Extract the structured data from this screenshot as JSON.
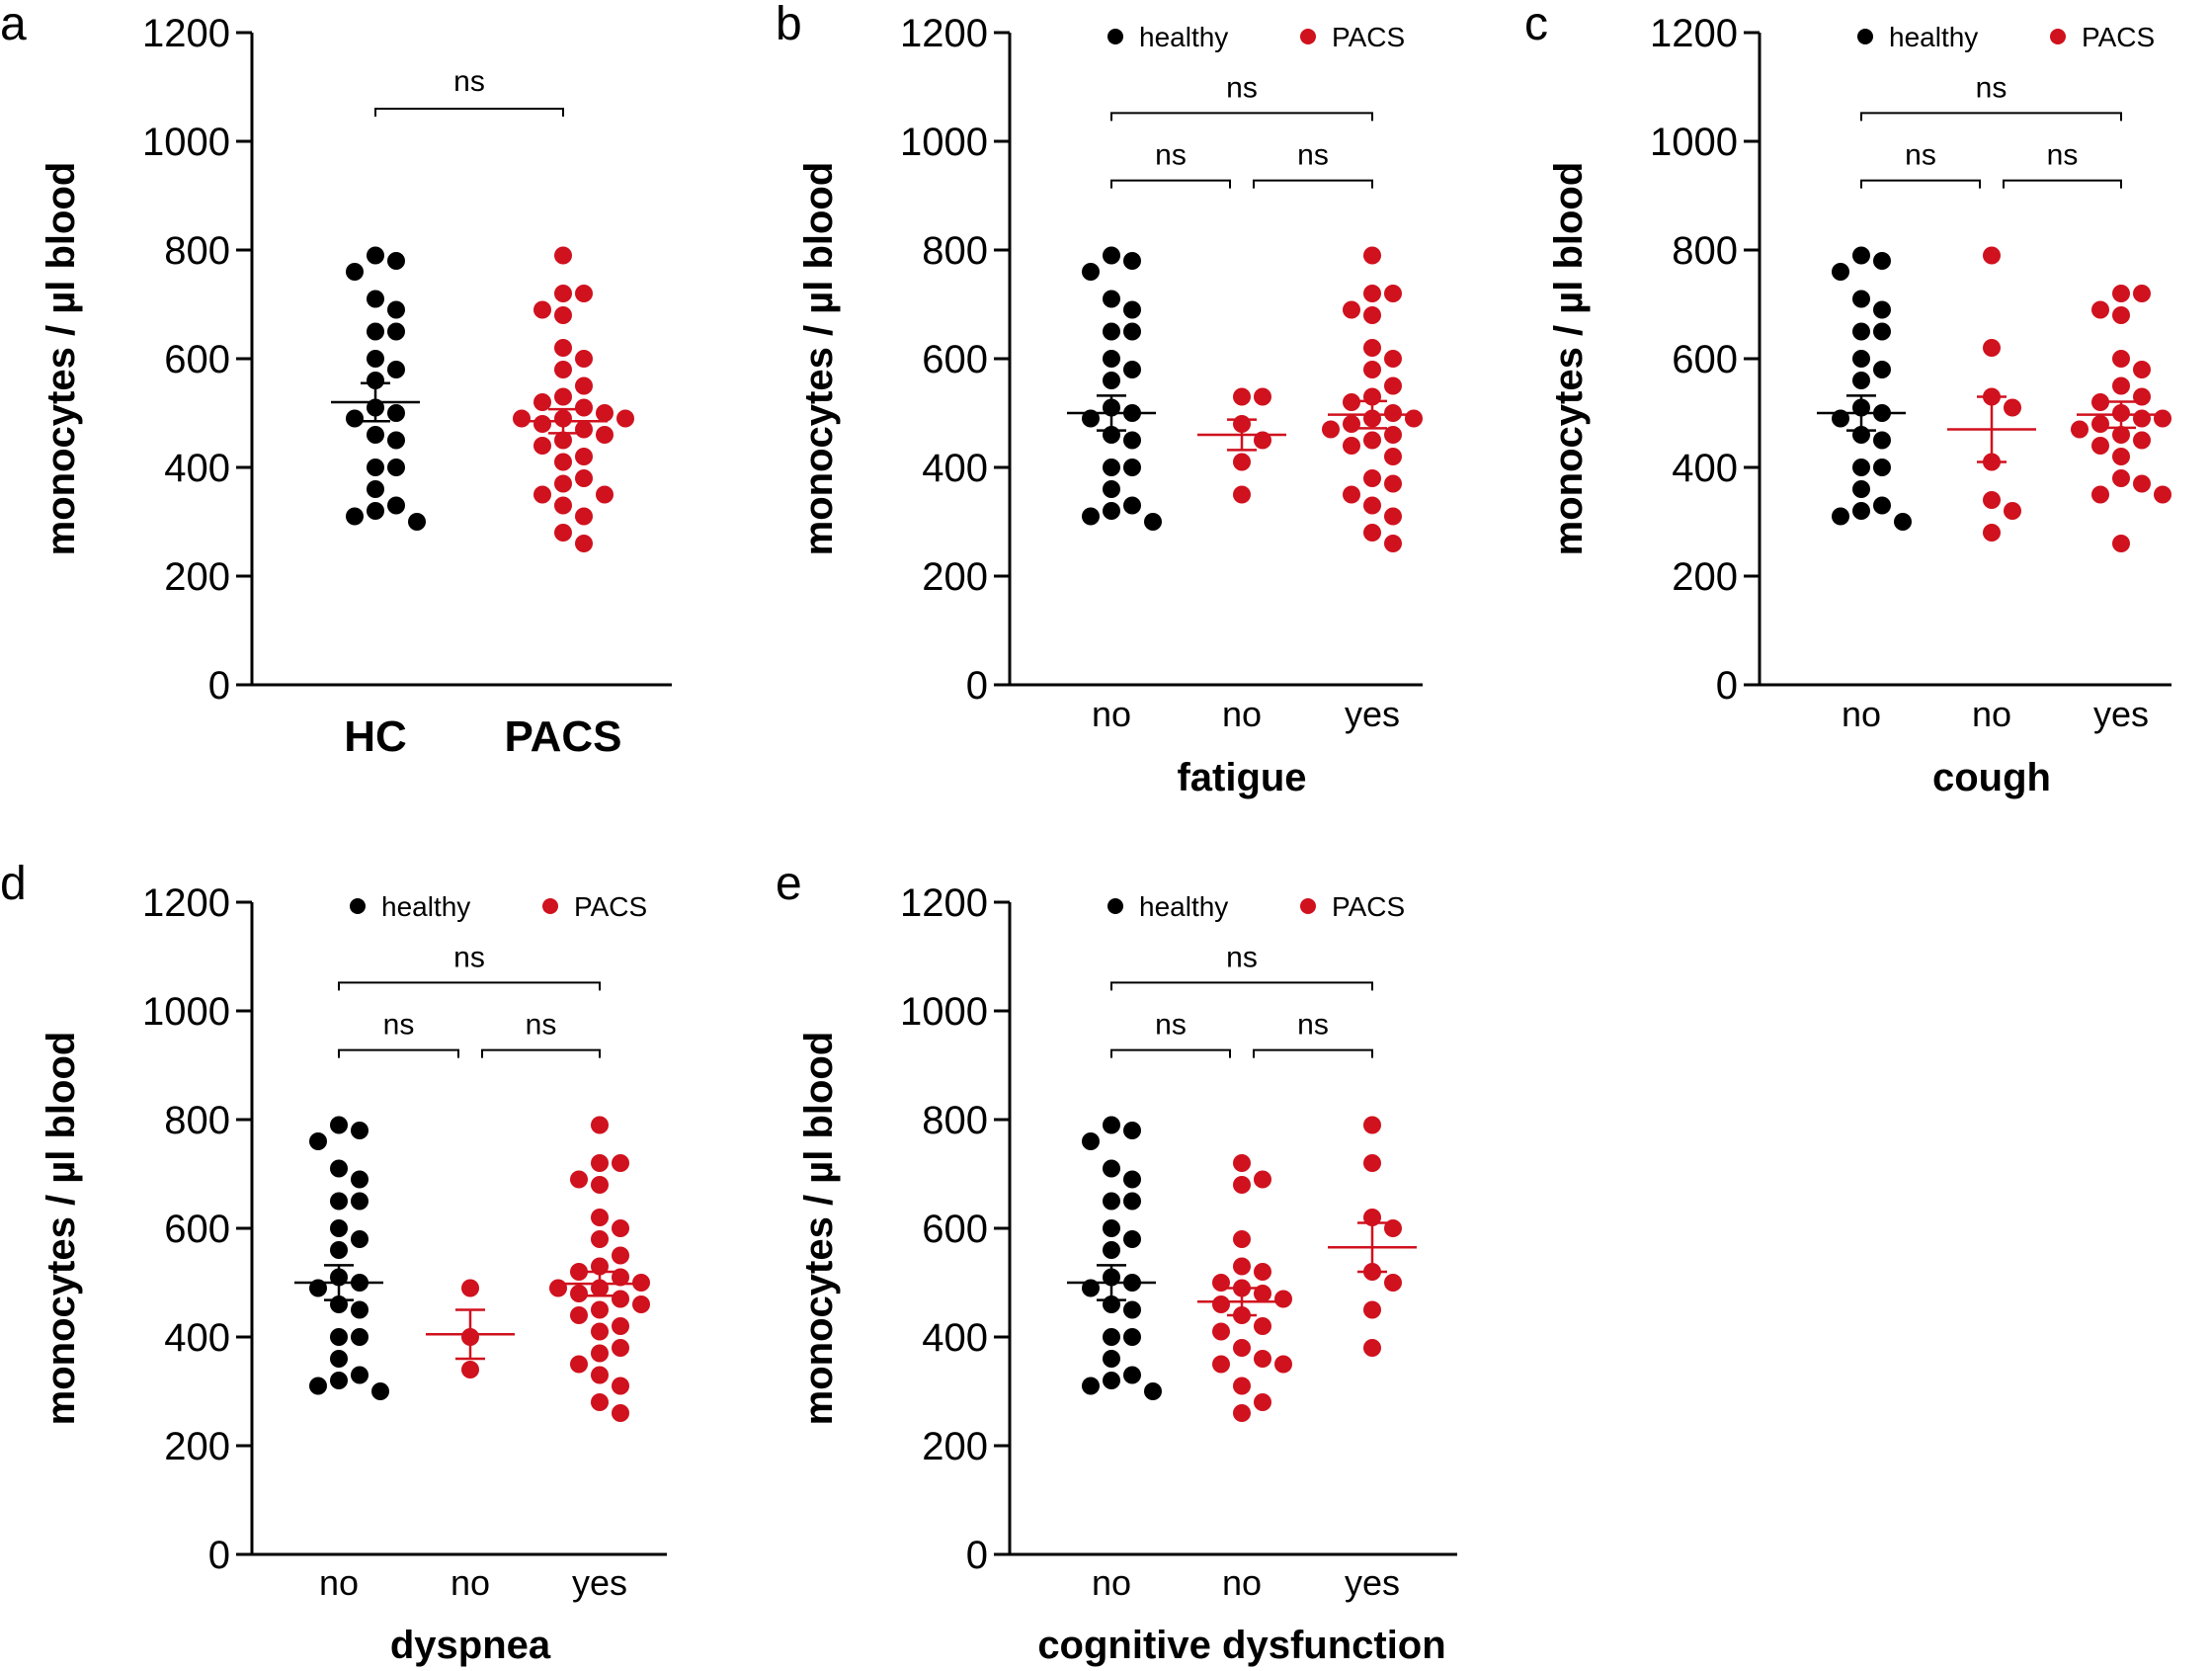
{
  "colors": {
    "healthy": "#000000",
    "pacs": "#d0111e",
    "axis": "#000000"
  },
  "chart_data": [
    {
      "panel": "a",
      "type": "scatter",
      "ylabel": "monocytes / µl blood",
      "xlabel": "",
      "ylim": [
        0,
        1200
      ],
      "yticks": [
        "0",
        "200",
        "400",
        "600",
        "800",
        "1000",
        "1200"
      ],
      "categories": [
        "HC",
        "PACS"
      ],
      "groups": [
        {
          "category": "HC",
          "series": "healthy",
          "mean": 520,
          "sem": 35,
          "values": [
            790,
            780,
            760,
            710,
            690,
            650,
            650,
            600,
            580,
            560,
            510,
            500,
            490,
            460,
            450,
            400,
            400,
            360,
            330,
            320,
            310,
            300
          ]
        },
        {
          "category": "PACS",
          "series": "PACS",
          "mean": 485,
          "sem": 22,
          "values": [
            790,
            720,
            720,
            690,
            680,
            620,
            600,
            580,
            550,
            530,
            520,
            510,
            500,
            490,
            490,
            490,
            480,
            470,
            460,
            450,
            440,
            420,
            410,
            380,
            370,
            350,
            350,
            330,
            310,
            280,
            260
          ]
        }
      ],
      "comparisons": [
        {
          "groups": [
            "HC",
            "PACS"
          ],
          "label": "ns"
        }
      ],
      "legend": null
    },
    {
      "panel": "b",
      "type": "scatter",
      "ylabel": "monocytes / µl blood",
      "xlabel": "fatigue",
      "ylim": [
        0,
        1200
      ],
      "yticks": [
        "0",
        "200",
        "400",
        "600",
        "800",
        "1000",
        "1200"
      ],
      "categories": [
        "no",
        "no",
        "yes"
      ],
      "groups": [
        {
          "category": "no",
          "series": "healthy",
          "mean": 500,
          "sem": 32,
          "values": [
            790,
            780,
            760,
            710,
            690,
            650,
            650,
            600,
            580,
            560,
            510,
            500,
            490,
            460,
            450,
            400,
            400,
            360,
            330,
            320,
            310,
            300
          ]
        },
        {
          "category": "no",
          "series": "PACS",
          "mean": 460,
          "sem": 28,
          "values": [
            530,
            530,
            480,
            450,
            410,
            350
          ]
        },
        {
          "category": "yes",
          "series": "PACS",
          "mean": 497,
          "sem": 25,
          "values": [
            790,
            720,
            720,
            690,
            680,
            620,
            600,
            580,
            550,
            530,
            520,
            500,
            490,
            490,
            480,
            470,
            460,
            450,
            440,
            420,
            380,
            370,
            350,
            330,
            310,
            280,
            260
          ]
        }
      ],
      "comparisons": [
        {
          "groups": [
            "no",
            "no"
          ],
          "label": "ns"
        },
        {
          "groups": [
            "no",
            "yes"
          ],
          "label": "ns"
        },
        {
          "groups": [
            "no",
            "yes"
          ],
          "label": "ns"
        }
      ],
      "legend": {
        "items": [
          "healthy",
          "PACS"
        ],
        "position": "top"
      }
    },
    {
      "panel": "c",
      "type": "scatter",
      "ylabel": "monocytes / µl blood",
      "xlabel": "cough",
      "ylim": [
        0,
        1200
      ],
      "yticks": [
        "0",
        "200",
        "400",
        "600",
        "800",
        "1000",
        "1200"
      ],
      "categories": [
        "no",
        "no",
        "yes"
      ],
      "groups": [
        {
          "category": "no",
          "series": "healthy",
          "mean": 500,
          "sem": 32,
          "values": [
            790,
            780,
            760,
            710,
            690,
            650,
            650,
            600,
            580,
            560,
            510,
            500,
            490,
            460,
            450,
            400,
            400,
            360,
            330,
            320,
            310,
            300
          ]
        },
        {
          "category": "no",
          "series": "PACS",
          "mean": 470,
          "sem": 60,
          "values": [
            790,
            620,
            530,
            510,
            410,
            340,
            320,
            280
          ]
        },
        {
          "category": "yes",
          "series": "PACS",
          "mean": 497,
          "sem": 24,
          "values": [
            720,
            720,
            690,
            680,
            600,
            580,
            550,
            530,
            520,
            500,
            490,
            490,
            480,
            470,
            460,
            450,
            440,
            420,
            380,
            370,
            350,
            350,
            260
          ]
        }
      ],
      "comparisons": [
        {
          "groups": [
            "no",
            "no"
          ],
          "label": "ns"
        },
        {
          "groups": [
            "no",
            "yes"
          ],
          "label": "ns"
        },
        {
          "groups": [
            "no",
            "yes"
          ],
          "label": "ns"
        }
      ],
      "legend": {
        "items": [
          "healthy",
          "PACS"
        ],
        "position": "top"
      }
    },
    {
      "panel": "d",
      "type": "scatter",
      "ylabel": "monocytes / µl blood",
      "xlabel": "dyspnea",
      "ylim": [
        0,
        1200
      ],
      "yticks": [
        "0",
        "200",
        "400",
        "600",
        "800",
        "1000",
        "1200"
      ],
      "categories": [
        "no",
        "no",
        "yes"
      ],
      "groups": [
        {
          "category": "no",
          "series": "healthy",
          "mean": 500,
          "sem": 32,
          "values": [
            790,
            780,
            760,
            710,
            690,
            650,
            650,
            600,
            580,
            560,
            510,
            500,
            490,
            460,
            450,
            400,
            400,
            360,
            330,
            320,
            310,
            300
          ]
        },
        {
          "category": "no",
          "series": "PACS",
          "mean": 405,
          "sem": 45,
          "values": [
            490,
            400,
            340
          ]
        },
        {
          "category": "yes",
          "series": "PACS",
          "mean": 498,
          "sem": 22,
          "values": [
            790,
            720,
            720,
            690,
            680,
            620,
            600,
            580,
            550,
            530,
            520,
            510,
            500,
            490,
            490,
            480,
            470,
            460,
            450,
            440,
            420,
            410,
            380,
            370,
            350,
            330,
            310,
            280,
            260
          ]
        }
      ],
      "comparisons": [
        {
          "groups": [
            "no",
            "no"
          ],
          "label": "ns"
        },
        {
          "groups": [
            "no",
            "yes"
          ],
          "label": "ns"
        },
        {
          "groups": [
            "no",
            "yes"
          ],
          "label": "ns"
        }
      ],
      "legend": {
        "items": [
          "healthy",
          "PACS"
        ],
        "position": "top"
      }
    },
    {
      "panel": "e",
      "type": "scatter",
      "ylabel": "monocytes / µl blood",
      "xlabel": "cognitive dysfunction",
      "ylim": [
        0,
        1200
      ],
      "yticks": [
        "0",
        "200",
        "400",
        "600",
        "800",
        "1000",
        "1200"
      ],
      "categories": [
        "no",
        "no",
        "yes"
      ],
      "groups": [
        {
          "category": "no",
          "series": "healthy",
          "mean": 500,
          "sem": 32,
          "values": [
            790,
            780,
            760,
            710,
            690,
            650,
            650,
            600,
            580,
            560,
            510,
            500,
            490,
            460,
            450,
            400,
            400,
            360,
            330,
            320,
            310,
            300
          ]
        },
        {
          "category": "no",
          "series": "PACS",
          "mean": 465,
          "sem": 25,
          "values": [
            720,
            690,
            680,
            580,
            530,
            520,
            500,
            490,
            480,
            470,
            460,
            440,
            420,
            410,
            380,
            360,
            350,
            350,
            310,
            280,
            260
          ]
        },
        {
          "category": "yes",
          "series": "PACS",
          "mean": 565,
          "sem": 45,
          "values": [
            790,
            720,
            620,
            600,
            520,
            500,
            450,
            380
          ]
        }
      ],
      "comparisons": [
        {
          "groups": [
            "no",
            "no"
          ],
          "label": "ns"
        },
        {
          "groups": [
            "no",
            "yes"
          ],
          "label": "ns"
        },
        {
          "groups": [
            "no",
            "yes"
          ],
          "label": "ns"
        }
      ],
      "legend": {
        "items": [
          "healthy",
          "PACS"
        ],
        "position": "top"
      }
    }
  ]
}
